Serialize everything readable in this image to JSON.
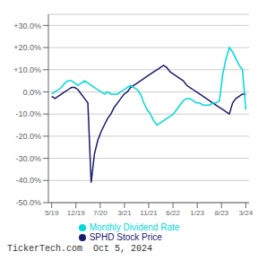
{
  "chart_data": {
    "type": "line",
    "title": "",
    "x": [
      0,
      1,
      2,
      3,
      4,
      5,
      6,
      7,
      8,
      9,
      10,
      11,
      12,
      13,
      14,
      15,
      16,
      17,
      18,
      19,
      20,
      21,
      22,
      23,
      24,
      25,
      26,
      27,
      28,
      29,
      30,
      31,
      32,
      33,
      34,
      35,
      36,
      37,
      38,
      39,
      40,
      41,
      42,
      43,
      44,
      45,
      46,
      47,
      48,
      49,
      50,
      51,
      52,
      53,
      54,
      55,
      56,
      57,
      58,
      59
    ],
    "series": [
      {
        "name": "SPHD Stock Price",
        "color": "#1a1a6e",
        "values": [
          -2,
          -3,
          -2,
          -1,
          0,
          1,
          2,
          2,
          1,
          -1,
          -3,
          -5,
          -41,
          -28,
          -22,
          -18,
          -15,
          -12,
          -10,
          -7,
          -5,
          -3,
          -1,
          0,
          2,
          3,
          4,
          5,
          6,
          7,
          8,
          9,
          10,
          11,
          12,
          11,
          9,
          8,
          7,
          6,
          5,
          3,
          2,
          1,
          0,
          -1,
          -2,
          -3,
          -4,
          -5,
          -6,
          -7,
          -8,
          -9,
          -10,
          -5,
          -3,
          -2,
          -1,
          -1
        ]
      },
      {
        "name": "Monthly Dividend Rate",
        "color": "#00d8d8",
        "values": [
          -1,
          0,
          1,
          2,
          4,
          5,
          5,
          4,
          3,
          4,
          5,
          4,
          3,
          2,
          1,
          0,
          -1,
          0,
          -1,
          -1,
          -1,
          0,
          1,
          2,
          3,
          2,
          1,
          -1,
          -5,
          -8,
          -10,
          -13,
          -15,
          -14,
          -13,
          -12,
          -11,
          -10,
          -8,
          -6,
          -4,
          -3,
          -3,
          -4,
          -5,
          -5,
          -6,
          -6,
          -6,
          -5,
          -5,
          -4,
          8,
          15,
          20,
          18,
          15,
          12,
          10,
          -8
        ]
      }
    ],
    "xlim": [
      -1,
      60
    ],
    "xticks": [
      {
        "value": 0,
        "label": "5/19"
      },
      {
        "value": 7.375,
        "label": "12/19"
      },
      {
        "value": 14.75,
        "label": "7/20"
      },
      {
        "value": 22.125,
        "label": "3/21"
      },
      {
        "value": 29.5,
        "label": "11/21"
      },
      {
        "value": 36.875,
        "label": "6/22"
      },
      {
        "value": 44.25,
        "label": "1/23"
      },
      {
        "value": 51.625,
        "label": "8/23"
      },
      {
        "value": 59,
        "label": "3/24"
      }
    ],
    "ylim": [
      -50.0,
      35.0
    ],
    "yticks": [
      {
        "value": -50.0,
        "label": "-50.0%"
      },
      {
        "value": -40.0,
        "label": "-40.0%"
      },
      {
        "value": -30.0,
        "label": "-30.0%"
      },
      {
        "value": -20.0,
        "label": "-20.0%"
      },
      {
        "value": -10.0,
        "label": "-10.0%"
      },
      {
        "value": 0.0,
        "label": "0.0%"
      },
      {
        "value": 10.0,
        "label": "+10.0%"
      },
      {
        "value": 20.0,
        "label": "+20.0%"
      },
      {
        "value": 30.0,
        "label": "+30.0%"
      }
    ],
    "grid": true,
    "legend": "bottom",
    "annotations": [
      "TickerTech.com  Oct 5, 2024"
    ]
  }
}
